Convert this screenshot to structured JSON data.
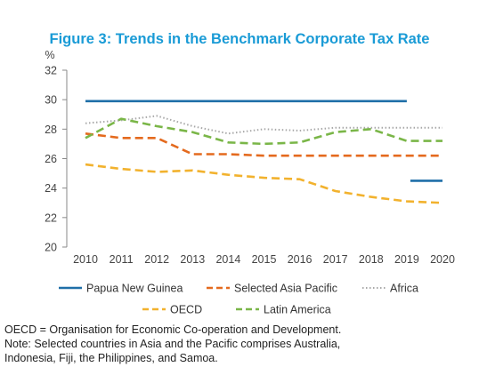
{
  "chart_data": {
    "type": "line",
    "title": "Figure 3: Trends in the Benchmark Corporate Tax Rate",
    "ylabel": "%",
    "xlabel": "",
    "ylim": [
      20,
      32
    ],
    "yticks": [
      20,
      22,
      24,
      26,
      28,
      30,
      32
    ],
    "x": [
      "2010",
      "2011",
      "2012",
      "2013",
      "2014",
      "2015",
      "2016",
      "2017",
      "2018",
      "2019",
      "2020"
    ],
    "grid": false,
    "legend_position": "bottom",
    "series": [
      {
        "name": "Papua New Guinea",
        "color": "#1f6fa8",
        "dash": "solid",
        "points": [
          [
            2010,
            29.9
          ],
          [
            2019,
            29.9
          ],
          [
            2019,
            29.9
          ]
        ],
        "segments": [
          [
            [
              2010,
              29.9
            ],
            [
              2019,
              29.9
            ]
          ],
          [
            [
              2019.1,
              24.5
            ],
            [
              2020,
              24.5
            ]
          ]
        ]
      },
      {
        "name": "Selected Asia Pacific",
        "color": "#e46a1e",
        "dash": "dashed",
        "segments": [
          [
            [
              2010,
              27.7
            ],
            [
              2011,
              27.4
            ],
            [
              2012,
              27.4
            ],
            [
              2013,
              26.3
            ],
            [
              2014,
              26.3
            ],
            [
              2015,
              26.2
            ],
            [
              2016,
              26.2
            ],
            [
              2017,
              26.2
            ],
            [
              2018,
              26.2
            ],
            [
              2019,
              26.2
            ],
            [
              2020,
              26.2
            ]
          ]
        ]
      },
      {
        "name": "Africa",
        "color": "#a8a8a8",
        "dash": "dotted",
        "segments": [
          [
            [
              2010,
              28.4
            ],
            [
              2011,
              28.6
            ],
            [
              2012,
              28.9
            ],
            [
              2013,
              28.2
            ],
            [
              2014,
              27.7
            ],
            [
              2015,
              28.0
            ],
            [
              2016,
              27.9
            ],
            [
              2017,
              28.1
            ],
            [
              2018,
              28.1
            ],
            [
              2019,
              28.1
            ],
            [
              2020,
              28.1
            ]
          ]
        ]
      },
      {
        "name": "OECD",
        "color": "#f2b22e",
        "dash": "dashed",
        "segments": [
          [
            [
              2010,
              25.6
            ],
            [
              2011,
              25.3
            ],
            [
              2012,
              25.1
            ],
            [
              2013,
              25.2
            ],
            [
              2014,
              24.9
            ],
            [
              2015,
              24.7
            ],
            [
              2016,
              24.6
            ],
            [
              2017,
              23.8
            ],
            [
              2018,
              23.4
            ],
            [
              2019,
              23.1
            ],
            [
              2020,
              23.0
            ]
          ]
        ]
      },
      {
        "name": "Latin America",
        "color": "#7ab648",
        "dash": "dashed",
        "segments": [
          [
            [
              2010,
              27.4
            ],
            [
              2011,
              28.7
            ],
            [
              2012,
              28.2
            ],
            [
              2013,
              27.8
            ],
            [
              2014,
              27.1
            ],
            [
              2015,
              27.0
            ],
            [
              2016,
              27.1
            ],
            [
              2017,
              27.8
            ],
            [
              2018,
              28.0
            ],
            [
              2019,
              27.2
            ],
            [
              2020,
              27.2
            ]
          ]
        ]
      }
    ]
  },
  "notes": {
    "line1": "OECD = Organisation for Economic Co-operation and Development.",
    "line2": "Note: Selected countries in Asia and the Pacific comprises Australia,",
    "line3": "Indonesia, Fiji, the Philippines, and Samoa."
  }
}
